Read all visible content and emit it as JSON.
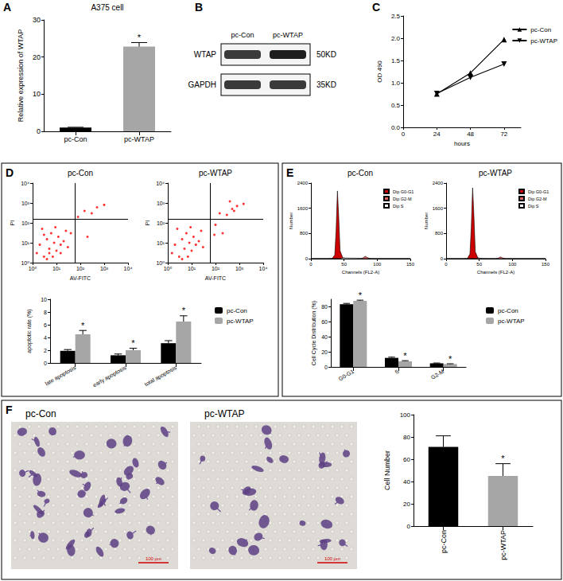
{
  "panel_labels": [
    "A",
    "B",
    "C",
    "D",
    "E",
    "F"
  ],
  "blot": {
    "lanes": [
      "pc-Con",
      "pc-WTAP"
    ],
    "bands": [
      {
        "label": "WTAP",
        "size": "50KD"
      },
      {
        "label": "GAPDH",
        "size": "35KD"
      }
    ]
  },
  "micrographs": {
    "labels": [
      "pc-Con",
      "pc-WTAP"
    ],
    "scale_bar": "100 μm"
  },
  "chart_data": [
    {
      "type": "bar",
      "title": "A375 cell",
      "y_label": "Relative expression of WTAP",
      "categories": [
        "pc-Con",
        "pc-WTAP"
      ],
      "values": [
        1,
        22.8
      ],
      "errors": [
        0.1,
        1.1
      ],
      "colors": [
        "#000000",
        "#a6a6a6"
      ],
      "ylim": [
        0,
        30
      ],
      "yticks": [
        0,
        10,
        20,
        30
      ],
      "annotations": [
        {
          "category": "pc-WTAP",
          "text": "*"
        }
      ]
    },
    {
      "type": "line",
      "x_label": "hours",
      "y_label": "OD 490",
      "x": [
        24,
        48,
        72
      ],
      "series": [
        {
          "name": "pc-Con",
          "color": "#000000",
          "marker": "triangle",
          "values": [
            0.75,
            1.22,
            1.97
          ]
        },
        {
          "name": "pc-WTAP",
          "color": "#000000",
          "marker": "triangle-down",
          "values": [
            0.76,
            1.12,
            1.42
          ]
        }
      ],
      "xlim": [
        0,
        84
      ],
      "xticks": [
        0,
        24,
        48,
        72
      ],
      "ylim": [
        0,
        2.5
      ],
      "yticks": [
        {
          "value": 0,
          "label": "0.0"
        },
        0.5,
        {
          "value": 1,
          "label": "1.0"
        },
        1.5,
        {
          "value": 2,
          "label": "2.0"
        },
        2.5
      ],
      "legend": "right"
    },
    {
      "type": "scatter",
      "title": "pc-Con",
      "x_label": "AV-FITC",
      "y_label": "PI",
      "log": true,
      "color": "#ff0000",
      "x": [
        1.5,
        2,
        3,
        4,
        5,
        6,
        8,
        10,
        12,
        15,
        20,
        25,
        30,
        2.5,
        4,
        7,
        9,
        3,
        5,
        15,
        40,
        80,
        150,
        300,
        500,
        200,
        1000
      ],
      "values": [
        3,
        8,
        2,
        15,
        5,
        30,
        10,
        4,
        20,
        8,
        12,
        40,
        6,
        50,
        1.5,
        2,
        60,
        25,
        3,
        3,
        30,
        200,
        400,
        300,
        600,
        20,
        800
      ],
      "gate_x": 60,
      "gate_y": 150,
      "xlim": [
        1,
        10000
      ],
      "xticks": [
        {
          "value": 1,
          "label": "10⁰"
        },
        {
          "value": 10,
          "label": "10¹"
        },
        {
          "value": 100,
          "label": "10²"
        },
        {
          "value": 1000,
          "label": "10³"
        },
        {
          "value": 10000,
          "label": "10⁴"
        }
      ],
      "ylim": [
        1,
        10000
      ],
      "yticks": [
        {
          "value": 1,
          "label": "10⁰"
        },
        {
          "value": 10,
          "label": "10¹"
        },
        {
          "value": 100,
          "label": "10²"
        },
        {
          "value": 1000,
          "label": "10³"
        },
        {
          "value": 10000,
          "label": "10⁴"
        }
      ]
    },
    {
      "type": "scatter",
      "title": "pc-WTAP",
      "x_label": "AV-FITC",
      "y_label": "PI",
      "log": true,
      "color": "#ff0000",
      "x": [
        1.5,
        2,
        3,
        4,
        5,
        6,
        8,
        10,
        12,
        15,
        20,
        25,
        30,
        2.5,
        4,
        7,
        9,
        100,
        150,
        300,
        500,
        800,
        1500,
        400,
        600,
        200,
        90
      ],
      "values": [
        3,
        8,
        2,
        15,
        5,
        30,
        10,
        4,
        20,
        8,
        12,
        40,
        6,
        50,
        1.5,
        2,
        60,
        80,
        300,
        250,
        500,
        700,
        900,
        1200,
        400,
        30,
        25
      ],
      "gate_x": 60,
      "gate_y": 150,
      "xlim": [
        1,
        10000
      ],
      "xticks": [
        {
          "value": 1,
          "label": "10⁰"
        },
        {
          "value": 10,
          "label": "10¹"
        },
        {
          "value": 100,
          "label": "10²"
        },
        {
          "value": 1000,
          "label": "10³"
        },
        {
          "value": 10000,
          "label": "10⁴"
        }
      ],
      "ylim": [
        1,
        10000
      ],
      "yticks": [
        {
          "value": 1,
          "label": "10⁰"
        },
        {
          "value": 10,
          "label": "10¹"
        },
        {
          "value": 100,
          "label": "10²"
        },
        {
          "value": 1000,
          "label": "10³"
        },
        {
          "value": 10000,
          "label": "10⁴"
        }
      ]
    },
    {
      "type": "bar",
      "y_label": "apoptotic rate (%)",
      "categories": [
        "late apoptosis",
        "early apoptosis",
        "total apoptosis"
      ],
      "series": [
        {
          "name": "pc-Con",
          "color": "#000000",
          "values": [
            1.9,
            1.2,
            3.1
          ],
          "errors": [
            0.2,
            0.2,
            0.4
          ]
        },
        {
          "name": "pc-WTAP",
          "color": "#a6a6a6",
          "values": [
            4.5,
            2.0,
            6.5
          ],
          "errors": [
            0.6,
            0.3,
            0.9
          ],
          "annotations": [
            "*",
            "*",
            "*"
          ]
        }
      ],
      "ylim": [
        0,
        10
      ],
      "yticks": [
        0,
        2,
        4,
        6,
        8,
        10
      ],
      "legend": "right"
    },
    {
      "type": "area",
      "title": "pc-Con",
      "x_label": "Channels (FL2-A)",
      "y_label": "Number",
      "x": [
        0,
        25,
        32,
        36,
        38,
        40,
        42,
        44,
        48,
        55,
        65,
        75,
        79,
        82,
        85,
        90,
        110,
        150
      ],
      "series": [
        {
          "name": "Dip G0-G1",
          "color": "#cc0000",
          "values": [
            0,
            0,
            5,
            120,
            900,
            2150,
            1300,
            250,
            30,
            0,
            0,
            0,
            0,
            0,
            0,
            0,
            0,
            0
          ]
        },
        {
          "name": "Dip G2-M",
          "color": "#e06666",
          "values": [
            0,
            0,
            0,
            0,
            0,
            0,
            0,
            0,
            0,
            0,
            0,
            0,
            30,
            75,
            35,
            0,
            0,
            0
          ]
        },
        {
          "name": "Dip S",
          "color": "#ffffff",
          "values": [
            0,
            0,
            0,
            0,
            0,
            0,
            0,
            0,
            25,
            20,
            18,
            15,
            0,
            0,
            0,
            0,
            0,
            0
          ]
        }
      ],
      "xlim": [
        0,
        150
      ],
      "xticks": [
        0,
        50,
        100,
        150
      ],
      "ylim": [
        0,
        2400
      ],
      "yticks": [
        0,
        800,
        1600,
        2400
      ],
      "legend": "right"
    },
    {
      "type": "area",
      "title": "pc-WTAP",
      "x_label": "Channels (FL2-A)",
      "y_label": "Number",
      "x": [
        0,
        25,
        32,
        36,
        38,
        40,
        42,
        44,
        48,
        55,
        65,
        75,
        79,
        82,
        85,
        90,
        110,
        150
      ],
      "series": [
        {
          "name": "Dip G0-G1",
          "color": "#cc0000",
          "values": [
            0,
            0,
            5,
            150,
            1000,
            2250,
            1350,
            220,
            25,
            0,
            0,
            0,
            0,
            0,
            0,
            0,
            0,
            0
          ]
        },
        {
          "name": "Dip G2-M",
          "color": "#e06666",
          "values": [
            0,
            0,
            0,
            0,
            0,
            0,
            0,
            0,
            0,
            0,
            0,
            0,
            20,
            55,
            25,
            0,
            0,
            0
          ]
        },
        {
          "name": "Dip S",
          "color": "#ffffff",
          "values": [
            0,
            0,
            0,
            0,
            0,
            0,
            0,
            0,
            15,
            12,
            10,
            8,
            0,
            0,
            0,
            0,
            0,
            0
          ]
        }
      ],
      "xlim": [
        0,
        150
      ],
      "xticks": [
        0,
        50,
        100,
        150
      ],
      "ylim": [
        0,
        2400
      ],
      "yticks": [
        0,
        800,
        1600,
        2400
      ],
      "legend": "right"
    },
    {
      "type": "bar",
      "y_label": "Cell Cycle Distribution (%)",
      "categories": [
        "G0-G1",
        "S",
        "G2-M"
      ],
      "series": [
        {
          "name": "pc-Con",
          "color": "#000000",
          "values": [
            83.5,
            12,
            4.8
          ],
          "errors": [
            1,
            1,
            0.4
          ]
        },
        {
          "name": "pc-WTAP",
          "color": "#a6a6a6",
          "values": [
            88,
            7.5,
            3.8
          ],
          "errors": [
            0.8,
            0.8,
            0.4
          ],
          "annotations": [
            "*",
            "*",
            "*"
          ]
        }
      ],
      "ylim": [
        0,
        90
      ],
      "yticks": [
        0,
        20,
        40,
        60,
        80
      ],
      "legend": "right"
    },
    {
      "type": "bar",
      "y_label": "Cell Number",
      "categories": [
        "pc-Con",
        "pc-WTAP"
      ],
      "values": [
        71,
        45
      ],
      "errors": [
        10,
        11
      ],
      "colors": [
        "#000000",
        "#a6a6a6"
      ],
      "ylim": [
        0,
        100
      ],
      "yticks": [
        0,
        20,
        40,
        60,
        80,
        100
      ],
      "annotations": [
        {
          "category": "pc-WTAP",
          "text": "*"
        }
      ]
    }
  ]
}
